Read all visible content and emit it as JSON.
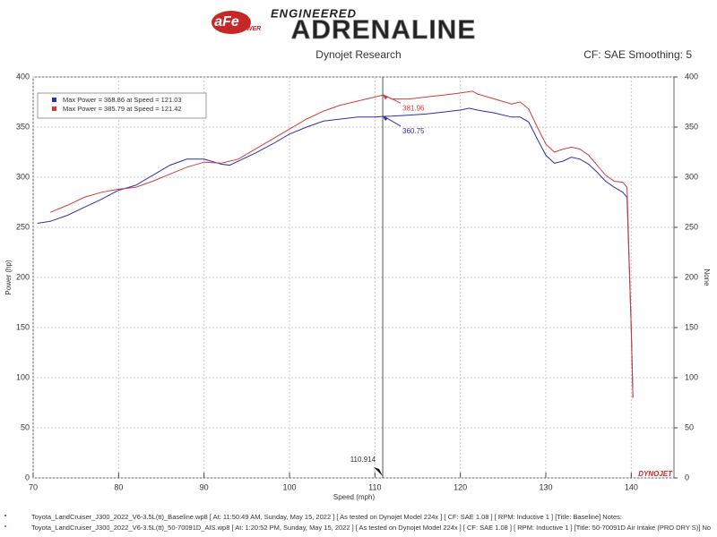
{
  "header": {
    "logo": "aFe",
    "logo_sub": "POWER",
    "tagline": "ENGINEERED",
    "brand": "ADRENALINE"
  },
  "chart_data": {
    "type": "line",
    "title": "Dynojet Research",
    "subtitle": "CF: SAE Smoothing: 5",
    "xlabel": "Speed (mph)",
    "ylabel": "Power (hp)",
    "y2label": "None",
    "watermark": "DYNOJET",
    "xlim": [
      70,
      145
    ],
    "ylim": [
      0,
      400
    ],
    "y2lim": [
      0,
      400
    ],
    "xticks": [
      70,
      80,
      90,
      100,
      110,
      120,
      130,
      140
    ],
    "yticks": [
      0,
      50,
      100,
      150,
      200,
      250,
      300,
      350,
      400
    ],
    "y2ticks": [
      0,
      50,
      100,
      150,
      200,
      250,
      300,
      350,
      400
    ],
    "grid": true,
    "legend": "upper left",
    "series": [
      {
        "name": "Max Power = 368.86 at Speed = 121.03",
        "color": "#2f2fa8",
        "x": [
          70.5,
          72,
          74,
          76,
          78,
          80,
          82,
          84,
          86,
          88,
          90,
          92,
          93,
          94,
          96,
          98,
          100,
          102,
          104,
          106,
          108,
          110,
          111,
          112,
          114,
          116,
          118,
          120,
          121.03,
          122,
          124,
          126,
          127,
          128,
          129,
          130,
          131,
          132,
          133,
          134,
          135,
          136,
          137,
          138,
          139,
          139.5,
          140,
          140.2
        ],
        "values": [
          254,
          256,
          262,
          270,
          278,
          287,
          292,
          302,
          312,
          318,
          318,
          313,
          312,
          316,
          324,
          333,
          343,
          350,
          356,
          358,
          360,
          360,
          360.75,
          361,
          362,
          363,
          365,
          367,
          368.86,
          367,
          364,
          360,
          360,
          355,
          338,
          322,
          314,
          316,
          320,
          318,
          313,
          305,
          296,
          290,
          285,
          280,
          150,
          80
        ]
      },
      {
        "name": "Max Power = 385.79 at Speed = 121.42",
        "color": "#d03c3c",
        "x": [
          72,
          74,
          76,
          78,
          80,
          82,
          84,
          86,
          88,
          90,
          92,
          94,
          96,
          98,
          100,
          102,
          104,
          106,
          108,
          110,
          111,
          112,
          114,
          116,
          118,
          120,
          121.42,
          122,
          124,
          126,
          127,
          128,
          129,
          130,
          131,
          132,
          133,
          134,
          135,
          136,
          137,
          138,
          139,
          139.5,
          140,
          140.2
        ],
        "values": [
          265,
          272,
          280,
          285,
          288,
          290,
          296,
          303,
          310,
          315,
          314,
          318,
          328,
          338,
          348,
          358,
          366,
          372,
          376,
          380,
          381.96,
          378,
          378,
          380,
          382,
          384,
          385.79,
          383,
          378,
          373,
          375,
          368,
          350,
          333,
          325,
          328,
          330,
          328,
          322,
          312,
          302,
          296,
          295,
          290,
          150,
          80
        ]
      }
    ],
    "cursor": 110.914,
    "point_labels": [
      {
        "x": 110.914,
        "value": 381.96,
        "color": "#d03c3c"
      },
      {
        "x": 110.914,
        "value": 360.75,
        "color": "#2f2fa8"
      }
    ]
  },
  "footer": {
    "lines": [
      "Toyota_LandCruiser_J300_2022_V6-3.5L(tt)_Baseline.wp8 [ At: 11:50:49 AM, Sunday, May 15, 2022 ] [ As tested on Dynojet Model 224x ] [ CF: SAE 1.08 ] [ RPM: Inductive 1 ] [Title: Baseline]  Notes:",
      "Toyota_LandCruiser_J300_2022_V6-3.5L(tt)_50-70091D_AIS.wp8 [ At: 1:20:52 PM, Sunday, May 15, 2022 ] [ As tested on Dynojet Model 224x ] [ CF: SAE 1.08 ] [ RPM: Inductive 1 ] [Title: 50-70091D Air Intake (PRO DRY S)]  No"
    ]
  }
}
